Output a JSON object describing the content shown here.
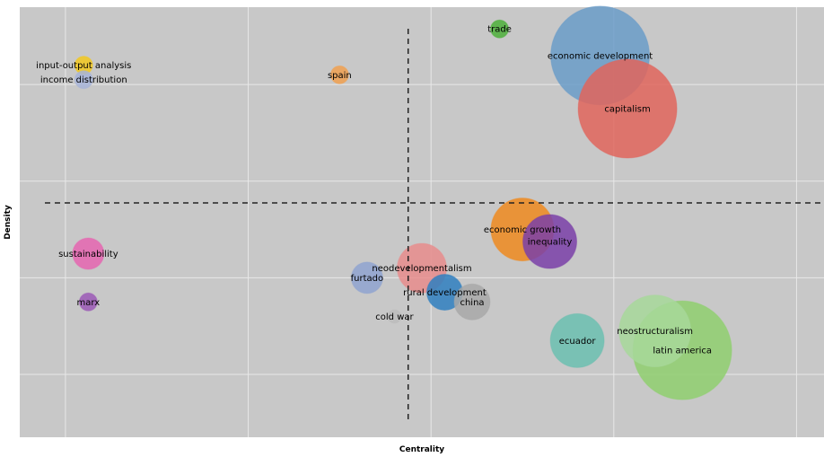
{
  "chart_data": {
    "type": "scatter",
    "subtype": "bubble",
    "title": "",
    "xlabel": "Centrality",
    "ylabel": "Density",
    "xlim": [
      -0.5,
      8.3
    ],
    "ylim": [
      -1.3,
      7.6
    ],
    "grid": true,
    "reference_lines": {
      "x": 3.75,
      "y": 3.55
    },
    "colors": {
      "background": "#c8c8c8",
      "grid": "#e8e8e8"
    },
    "points": [
      {
        "label": "trade",
        "x": 4.75,
        "y": 7.15,
        "size": 2.0,
        "color": "#4caf3a"
      },
      {
        "label": "economic development",
        "x": 5.85,
        "y": 6.6,
        "size": 11.0,
        "color": "#6a9cc8"
      },
      {
        "label": "capitalism",
        "x": 6.15,
        "y": 5.5,
        "size": 11.0,
        "color": "#e0655c"
      },
      {
        "label": "input-output analysis",
        "x": 0.2,
        "y": 6.4,
        "size": 2.0,
        "color": "#f2c81e"
      },
      {
        "label": "income distribution",
        "x": 0.2,
        "y": 6.1,
        "size": 2.0,
        "color": "#a7b4d8"
      },
      {
        "label": "spain",
        "x": 3.0,
        "y": 6.2,
        "size": 2.0,
        "color": "#f0a050"
      },
      {
        "label": "sustainability",
        "x": 0.25,
        "y": 2.5,
        "size": 3.5,
        "color": "#e565b0"
      },
      {
        "label": "marx",
        "x": 0.25,
        "y": 1.5,
        "size": 2.0,
        "color": "#9b59b6"
      },
      {
        "label": "economic growth",
        "x": 5.0,
        "y": 3.0,
        "size": 7.0,
        "color": "#ef8a1e"
      },
      {
        "label": "inequality",
        "x": 5.3,
        "y": 2.75,
        "size": 6.0,
        "color": "#7a3fa8"
      },
      {
        "label": "neodevelopmentalism",
        "x": 3.9,
        "y": 2.2,
        "size": 5.5,
        "color": "#e88c8c"
      },
      {
        "label": "furtado",
        "x": 3.3,
        "y": 2.0,
        "size": 3.5,
        "color": "#8fa3d0"
      },
      {
        "label": "rural development",
        "x": 4.15,
        "y": 1.7,
        "size": 4.0,
        "color": "#2f7fc0"
      },
      {
        "label": "china",
        "x": 4.45,
        "y": 1.5,
        "size": 4.0,
        "color": "#a8a8a8"
      },
      {
        "label": "cold war",
        "x": 3.6,
        "y": 1.2,
        "size": 1.5,
        "color": "#bcbcbc"
      },
      {
        "label": "ecuador",
        "x": 5.6,
        "y": 0.7,
        "size": 6.0,
        "color": "#6bbfb0"
      },
      {
        "label": "neostructuralism",
        "x": 6.45,
        "y": 0.9,
        "size": 8.0,
        "color": "#a7d89a"
      },
      {
        "label": "latin america",
        "x": 6.75,
        "y": 0.5,
        "size": 11.0,
        "color": "#8fcf6f"
      }
    ]
  }
}
